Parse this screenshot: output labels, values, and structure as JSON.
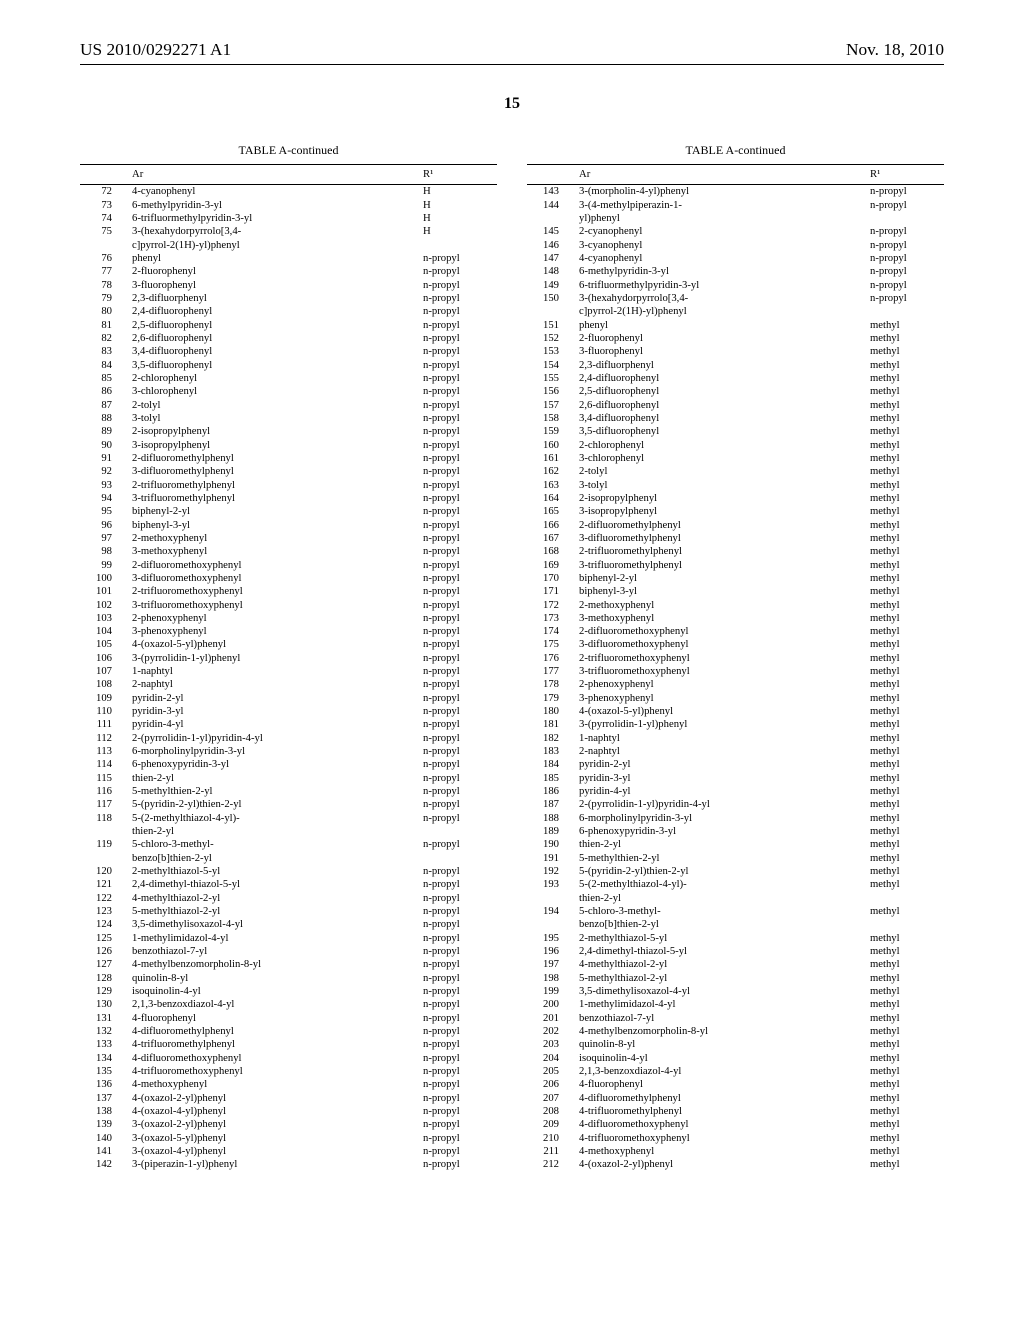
{
  "header": {
    "pub_no": "US 2010/0292271 A1",
    "date": "Nov. 18, 2010"
  },
  "page_number": "15",
  "table_title": "TABLE A-continued",
  "columns": {
    "idx": "",
    "ar": "Ar",
    "r1": "R¹"
  },
  "left_rows": [
    {
      "n": "72",
      "ar": "4-cyanophenyl",
      "r1": "H"
    },
    {
      "n": "73",
      "ar": "6-methylpyridin-3-yl",
      "r1": "H"
    },
    {
      "n": "74",
      "ar": "6-trifluormethylpyridin-3-yl",
      "r1": "H"
    },
    {
      "n": "75",
      "ar": "3-(hexahydorpyrrolo[3,4-",
      "r1": "H"
    },
    {
      "n": "",
      "ar": "c]pyrrol-2(1H)-yl)phenyl",
      "r1": ""
    },
    {
      "n": "76",
      "ar": "phenyl",
      "r1": "n-propyl"
    },
    {
      "n": "77",
      "ar": "2-fluorophenyl",
      "r1": "n-propyl"
    },
    {
      "n": "78",
      "ar": "3-fluorophenyl",
      "r1": "n-propyl"
    },
    {
      "n": "79",
      "ar": "2,3-difluorphenyl",
      "r1": "n-propyl"
    },
    {
      "n": "80",
      "ar": "2,4-difluorophenyl",
      "r1": "n-propyl"
    },
    {
      "n": "81",
      "ar": "2,5-difluorophenyl",
      "r1": "n-propyl"
    },
    {
      "n": "82",
      "ar": "2,6-difluorophenyl",
      "r1": "n-propyl"
    },
    {
      "n": "83",
      "ar": "3,4-difluorophenyl",
      "r1": "n-propyl"
    },
    {
      "n": "84",
      "ar": "3,5-difluorophenyl",
      "r1": "n-propyl"
    },
    {
      "n": "85",
      "ar": "2-chlorophenyl",
      "r1": "n-propyl"
    },
    {
      "n": "86",
      "ar": "3-chlorophenyl",
      "r1": "n-propyl"
    },
    {
      "n": "87",
      "ar": "2-tolyl",
      "r1": "n-propyl"
    },
    {
      "n": "88",
      "ar": "3-tolyl",
      "r1": "n-propyl"
    },
    {
      "n": "89",
      "ar": "2-isopropylphenyl",
      "r1": "n-propyl"
    },
    {
      "n": "90",
      "ar": "3-isopropylphenyl",
      "r1": "n-propyl"
    },
    {
      "n": "91",
      "ar": "2-difluoromethylphenyl",
      "r1": "n-propyl"
    },
    {
      "n": "92",
      "ar": "3-difluoromethylphenyl",
      "r1": "n-propyl"
    },
    {
      "n": "93",
      "ar": "2-trifluoromethylphenyl",
      "r1": "n-propyl"
    },
    {
      "n": "94",
      "ar": "3-trifluoromethylphenyl",
      "r1": "n-propyl"
    },
    {
      "n": "95",
      "ar": "biphenyl-2-yl",
      "r1": "n-propyl"
    },
    {
      "n": "96",
      "ar": "biphenyl-3-yl",
      "r1": "n-propyl"
    },
    {
      "n": "97",
      "ar": "2-methoxyphenyl",
      "r1": "n-propyl"
    },
    {
      "n": "98",
      "ar": "3-methoxyphenyl",
      "r1": "n-propyl"
    },
    {
      "n": "99",
      "ar": "2-difluoromethoxyphenyl",
      "r1": "n-propyl"
    },
    {
      "n": "100",
      "ar": "3-difluoromethoxyphenyl",
      "r1": "n-propyl"
    },
    {
      "n": "101",
      "ar": "2-trifluoromethoxyphenyl",
      "r1": "n-propyl"
    },
    {
      "n": "102",
      "ar": "3-trifluoromethoxyphenyl",
      "r1": "n-propyl"
    },
    {
      "n": "103",
      "ar": "2-phenoxyphenyl",
      "r1": "n-propyl"
    },
    {
      "n": "104",
      "ar": "3-phenoxyphenyl",
      "r1": "n-propyl"
    },
    {
      "n": "105",
      "ar": "4-(oxazol-5-yl)phenyl",
      "r1": "n-propyl"
    },
    {
      "n": "106",
      "ar": "3-(pyrrolidin-1-yl)phenyl",
      "r1": "n-propyl"
    },
    {
      "n": "107",
      "ar": "1-naphtyl",
      "r1": "n-propyl"
    },
    {
      "n": "108",
      "ar": "2-naphtyl",
      "r1": "n-propyl"
    },
    {
      "n": "109",
      "ar": "pyridin-2-yl",
      "r1": "n-propyl"
    },
    {
      "n": "110",
      "ar": "pyridin-3-yl",
      "r1": "n-propyl"
    },
    {
      "n": "111",
      "ar": "pyridin-4-yl",
      "r1": "n-propyl"
    },
    {
      "n": "112",
      "ar": "2-(pyrrolidin-1-yl)pyridin-4-yl",
      "r1": "n-propyl"
    },
    {
      "n": "113",
      "ar": "6-morpholinylpyridin-3-yl",
      "r1": "n-propyl"
    },
    {
      "n": "114",
      "ar": "6-phenoxypyridin-3-yl",
      "r1": "n-propyl"
    },
    {
      "n": "115",
      "ar": "thien-2-yl",
      "r1": "n-propyl"
    },
    {
      "n": "116",
      "ar": "5-methylthien-2-yl",
      "r1": "n-propyl"
    },
    {
      "n": "117",
      "ar": "5-(pyridin-2-yl)thien-2-yl",
      "r1": "n-propyl"
    },
    {
      "n": "118",
      "ar": "5-(2-methylthiazol-4-yl)-",
      "r1": "n-propyl"
    },
    {
      "n": "",
      "ar": "thien-2-yl",
      "r1": ""
    },
    {
      "n": "119",
      "ar": "5-chloro-3-methyl-",
      "r1": "n-propyl"
    },
    {
      "n": "",
      "ar": "benzo[b]thien-2-yl",
      "r1": ""
    },
    {
      "n": "120",
      "ar": "2-methylthiazol-5-yl",
      "r1": "n-propyl"
    },
    {
      "n": "121",
      "ar": "2,4-dimethyl-thiazol-5-yl",
      "r1": "n-propyl"
    },
    {
      "n": "122",
      "ar": "4-methylthiazol-2-yl",
      "r1": "n-propyl"
    },
    {
      "n": "123",
      "ar": "5-methylthiazol-2-yl",
      "r1": "n-propyl"
    },
    {
      "n": "124",
      "ar": "3,5-dimethylisoxazol-4-yl",
      "r1": "n-propyl"
    },
    {
      "n": "125",
      "ar": "1-methylimidazol-4-yl",
      "r1": "n-propyl"
    },
    {
      "n": "126",
      "ar": "benzothiazol-7-yl",
      "r1": "n-propyl"
    },
    {
      "n": "127",
      "ar": "4-methylbenzomorpholin-8-yl",
      "r1": "n-propyl"
    },
    {
      "n": "128",
      "ar": "quinolin-8-yl",
      "r1": "n-propyl"
    },
    {
      "n": "129",
      "ar": "isoquinolin-4-yl",
      "r1": "n-propyl"
    },
    {
      "n": "130",
      "ar": "2,1,3-benzoxdiazol-4-yl",
      "r1": "n-propyl"
    },
    {
      "n": "131",
      "ar": "4-fluorophenyl",
      "r1": "n-propyl"
    },
    {
      "n": "132",
      "ar": "4-difluoromethylphenyl",
      "r1": "n-propyl"
    },
    {
      "n": "133",
      "ar": "4-trifluoromethylphenyl",
      "r1": "n-propyl"
    },
    {
      "n": "134",
      "ar": "4-difluoromethoxyphenyl",
      "r1": "n-propyl"
    },
    {
      "n": "135",
      "ar": "4-trifluoromethoxyphenyl",
      "r1": "n-propyl"
    },
    {
      "n": "136",
      "ar": "4-methoxyphenyl",
      "r1": "n-propyl"
    },
    {
      "n": "137",
      "ar": "4-(oxazol-2-yl)phenyl",
      "r1": "n-propyl"
    },
    {
      "n": "138",
      "ar": "4-(oxazol-4-yl)phenyl",
      "r1": "n-propyl"
    },
    {
      "n": "139",
      "ar": "3-(oxazol-2-yl)phenyl",
      "r1": "n-propyl"
    },
    {
      "n": "140",
      "ar": "3-(oxazol-5-yl)phenyl",
      "r1": "n-propyl"
    },
    {
      "n": "141",
      "ar": "3-(oxazol-4-yl)phenyl",
      "r1": "n-propyl"
    },
    {
      "n": "142",
      "ar": "3-(piperazin-1-yl)phenyl",
      "r1": "n-propyl"
    }
  ],
  "right_rows": [
    {
      "n": "143",
      "ar": "3-(morpholin-4-yl)phenyl",
      "r1": "n-propyl"
    },
    {
      "n": "144",
      "ar": "3-(4-methylpiperazin-1-",
      "r1": "n-propyl"
    },
    {
      "n": "",
      "ar": "yl)phenyl",
      "r1": ""
    },
    {
      "n": "145",
      "ar": "2-cyanophenyl",
      "r1": "n-propyl"
    },
    {
      "n": "146",
      "ar": "3-cyanophenyl",
      "r1": "n-propyl"
    },
    {
      "n": "147",
      "ar": "4-cyanophenyl",
      "r1": "n-propyl"
    },
    {
      "n": "148",
      "ar": "6-methylpyridin-3-yl",
      "r1": "n-propyl"
    },
    {
      "n": "149",
      "ar": "6-trifluormethylpyridin-3-yl",
      "r1": "n-propyl"
    },
    {
      "n": "150",
      "ar": "3-(hexahydorpyrrolo[3,4-",
      "r1": "n-propyl"
    },
    {
      "n": "",
      "ar": "c]pyrrol-2(1H)-yl)phenyl",
      "r1": ""
    },
    {
      "n": "151",
      "ar": "phenyl",
      "r1": "methyl"
    },
    {
      "n": "152",
      "ar": "2-fluorophenyl",
      "r1": "methyl"
    },
    {
      "n": "153",
      "ar": "3-fluorophenyl",
      "r1": "methyl"
    },
    {
      "n": "154",
      "ar": "2,3-difluorphenyl",
      "r1": "methyl"
    },
    {
      "n": "155",
      "ar": "2,4-difluorophenyl",
      "r1": "methyl"
    },
    {
      "n": "156",
      "ar": "2,5-difluorophenyl",
      "r1": "methyl"
    },
    {
      "n": "157",
      "ar": "2,6-difluorophenyl",
      "r1": "methyl"
    },
    {
      "n": "158",
      "ar": "3,4-difluorophenyl",
      "r1": "methyl"
    },
    {
      "n": "159",
      "ar": "3,5-difluorophenyl",
      "r1": "methyl"
    },
    {
      "n": "160",
      "ar": "2-chlorophenyl",
      "r1": "methyl"
    },
    {
      "n": "161",
      "ar": "3-chlorophenyl",
      "r1": "methyl"
    },
    {
      "n": "162",
      "ar": "2-tolyl",
      "r1": "methyl"
    },
    {
      "n": "163",
      "ar": "3-tolyl",
      "r1": "methyl"
    },
    {
      "n": "164",
      "ar": "2-isopropylphenyl",
      "r1": "methyl"
    },
    {
      "n": "165",
      "ar": "3-isopropylphenyl",
      "r1": "methyl"
    },
    {
      "n": "166",
      "ar": "2-difluoromethylphenyl",
      "r1": "methyl"
    },
    {
      "n": "167",
      "ar": "3-difluoromethylphenyl",
      "r1": "methyl"
    },
    {
      "n": "168",
      "ar": "2-trifluoromethylphenyl",
      "r1": "methyl"
    },
    {
      "n": "169",
      "ar": "3-trifluoromethylphenyl",
      "r1": "methyl"
    },
    {
      "n": "170",
      "ar": "biphenyl-2-yl",
      "r1": "methyl"
    },
    {
      "n": "171",
      "ar": "biphenyl-3-yl",
      "r1": "methyl"
    },
    {
      "n": "172",
      "ar": "2-methoxyphenyl",
      "r1": "methyl"
    },
    {
      "n": "173",
      "ar": "3-methoxyphenyl",
      "r1": "methyl"
    },
    {
      "n": "174",
      "ar": "2-difluoromethoxyphenyl",
      "r1": "methyl"
    },
    {
      "n": "175",
      "ar": "3-difluoromethoxyphenyl",
      "r1": "methyl"
    },
    {
      "n": "176",
      "ar": "2-trifluoromethoxyphenyl",
      "r1": "methyl"
    },
    {
      "n": "177",
      "ar": "3-trifluoromethoxyphenyl",
      "r1": "methyl"
    },
    {
      "n": "178",
      "ar": "2-phenoxyphenyl",
      "r1": "methyl"
    },
    {
      "n": "179",
      "ar": "3-phenoxyphenyl",
      "r1": "methyl"
    },
    {
      "n": "180",
      "ar": "4-(oxazol-5-yl)phenyl",
      "r1": "methyl"
    },
    {
      "n": "181",
      "ar": "3-(pyrrolidin-1-yl)phenyl",
      "r1": "methyl"
    },
    {
      "n": "182",
      "ar": "1-naphtyl",
      "r1": "methyl"
    },
    {
      "n": "183",
      "ar": "2-naphtyl",
      "r1": "methyl"
    },
    {
      "n": "184",
      "ar": "pyridin-2-yl",
      "r1": "methyl"
    },
    {
      "n": "185",
      "ar": "pyridin-3-yl",
      "r1": "methyl"
    },
    {
      "n": "186",
      "ar": "pyridin-4-yl",
      "r1": "methyl"
    },
    {
      "n": "187",
      "ar": "2-(pyrrolidin-1-yl)pyridin-4-yl",
      "r1": "methyl"
    },
    {
      "n": "188",
      "ar": "6-morpholinylpyridin-3-yl",
      "r1": "methyl"
    },
    {
      "n": "189",
      "ar": "6-phenoxypyridin-3-yl",
      "r1": "methyl"
    },
    {
      "n": "190",
      "ar": "thien-2-yl",
      "r1": "methyl"
    },
    {
      "n": "191",
      "ar": "5-methylthien-2-yl",
      "r1": "methyl"
    },
    {
      "n": "192",
      "ar": "5-(pyridin-2-yl)thien-2-yl",
      "r1": "methyl"
    },
    {
      "n": "193",
      "ar": "5-(2-methylthiazol-4-yl)-",
      "r1": "methyl"
    },
    {
      "n": "",
      "ar": "thien-2-yl",
      "r1": ""
    },
    {
      "n": "194",
      "ar": "5-chloro-3-methyl-",
      "r1": "methyl"
    },
    {
      "n": "",
      "ar": "benzo[b]thien-2-yl",
      "r1": ""
    },
    {
      "n": "195",
      "ar": "2-methylthiazol-5-yl",
      "r1": "methyl"
    },
    {
      "n": "196",
      "ar": "2,4-dimethyl-thiazol-5-yl",
      "r1": "methyl"
    },
    {
      "n": "197",
      "ar": "4-methylthiazol-2-yl",
      "r1": "methyl"
    },
    {
      "n": "198",
      "ar": "5-methylthiazol-2-yl",
      "r1": "methyl"
    },
    {
      "n": "199",
      "ar": "3,5-dimethylisoxazol-4-yl",
      "r1": "methyl"
    },
    {
      "n": "200",
      "ar": "1-methylimidazol-4-yl",
      "r1": "methyl"
    },
    {
      "n": "201",
      "ar": "benzothiazol-7-yl",
      "r1": "methyl"
    },
    {
      "n": "202",
      "ar": "4-methylbenzomorpholin-8-yl",
      "r1": "methyl"
    },
    {
      "n": "203",
      "ar": "quinolin-8-yl",
      "r1": "methyl"
    },
    {
      "n": "204",
      "ar": "isoquinolin-4-yl",
      "r1": "methyl"
    },
    {
      "n": "205",
      "ar": "2,1,3-benzoxdiazol-4-yl",
      "r1": "methyl"
    },
    {
      "n": "206",
      "ar": "4-fluorophenyl",
      "r1": "methyl"
    },
    {
      "n": "207",
      "ar": "4-difluoromethylphenyl",
      "r1": "methyl"
    },
    {
      "n": "208",
      "ar": "4-trifluoromethylphenyl",
      "r1": "methyl"
    },
    {
      "n": "209",
      "ar": "4-difluoromethoxyphenyl",
      "r1": "methyl"
    },
    {
      "n": "210",
      "ar": "4-trifluoromethoxyphenyl",
      "r1": "methyl"
    },
    {
      "n": "211",
      "ar": "4-methoxyphenyl",
      "r1": "methyl"
    },
    {
      "n": "212",
      "ar": "4-(oxazol-2-yl)phenyl",
      "r1": "methyl"
    }
  ]
}
